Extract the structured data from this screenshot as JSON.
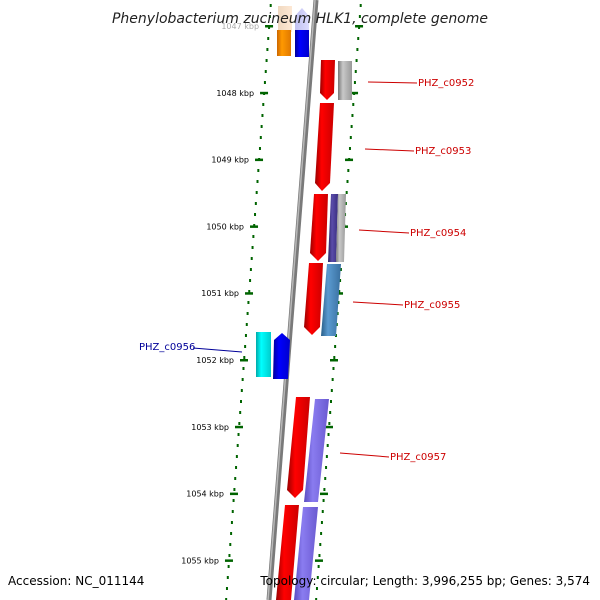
{
  "header": {
    "title": "Phenylobacterium zucineum HLK1, complete genome"
  },
  "footer": {
    "accession": "Accession: NC_011144",
    "summary": "Topology: circular; Length: 3,996,255 bp; Genes: 3,574"
  },
  "ruler": {
    "ticks": [
      {
        "label": "1047 kbp"
      },
      {
        "label": "1048 kbp"
      },
      {
        "label": "1049 kbp"
      },
      {
        "label": "1050 kbp"
      },
      {
        "label": "1051 kbp"
      },
      {
        "label": "1052 kbp"
      },
      {
        "label": "1053 kbp"
      },
      {
        "label": "1054 kbp"
      },
      {
        "label": "1055 kbp"
      }
    ]
  },
  "genes": [
    {
      "label": "PHZ_c0952",
      "color": "#cc0000"
    },
    {
      "label": "PHZ_c0953",
      "color": "#cc0000"
    },
    {
      "label": "PHZ_c0954",
      "color": "#cc0000"
    },
    {
      "label": "PHZ_c0955",
      "color": "#cc0000"
    },
    {
      "label": "PHZ_c0956",
      "color": "#000099"
    },
    {
      "label": "PHZ_c0957",
      "color": "#cc0000"
    }
  ],
  "colors": {
    "red": "#ff0000",
    "blue": "#0000ff",
    "cyan": "#00ffff",
    "orange": "#ff8c00",
    "gray": "#a8a8a8",
    "purple": "#7b68ee",
    "steel": "#4682b4",
    "indigo": "#483d8b",
    "axis": "#808080",
    "tick": "#006400"
  }
}
